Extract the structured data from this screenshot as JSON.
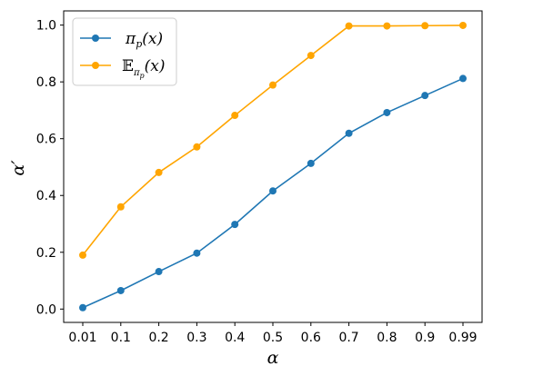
{
  "chart_data": {
    "type": "line",
    "categories": [
      "0.01",
      "0.1",
      "0.2",
      "0.3",
      "0.4",
      "0.5",
      "0.6",
      "0.7",
      "0.8",
      "0.9",
      "0.99"
    ],
    "series": [
      {
        "name": "π_p(x)",
        "color": "#1f77b4",
        "values": [
          0.005,
          0.065,
          0.132,
          0.197,
          0.298,
          0.416,
          0.513,
          0.619,
          0.692,
          0.752,
          0.812
        ]
      },
      {
        "name": "𝔼_{π_p}(x)",
        "color": "#ffa500",
        "values": [
          0.19,
          0.36,
          0.481,
          0.571,
          0.682,
          0.789,
          0.893,
          0.997,
          0.997,
          0.998,
          0.999
        ]
      }
    ],
    "xlabel": "α",
    "ylabel": "α′",
    "ylim": [
      -0.047,
      1.05
    ],
    "yticks": [
      "0.0",
      "0.2",
      "0.4",
      "0.6",
      "0.8",
      "1.0"
    ],
    "grid": false,
    "legend_position": "top-left"
  }
}
